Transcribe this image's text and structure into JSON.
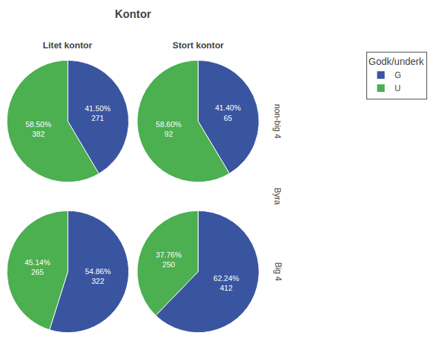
{
  "chart_data": {
    "type": "pie",
    "title": "Kontor",
    "legend_title": "Godk/underk",
    "legend": "upper right",
    "categories": [
      "G",
      "U"
    ],
    "colors": [
      "#3A55A0",
      "#4CAF50"
    ],
    "column_labels": [
      "Litet kontor",
      "Stort kontor"
    ],
    "row_labels": [
      "non-big 4",
      "Big 4"
    ],
    "mid_label": "Byra",
    "data_labels": true,
    "pies": [
      {
        "row": "non-big 4",
        "column": "Litet kontor",
        "values": [
          41.5,
          58.5
        ],
        "value_labels": [
          "41.50%\n271",
          "58.50%\n382"
        ]
      },
      {
        "row": "non-big 4",
        "column": "Stort kontor",
        "values": [
          41.4,
          58.6
        ],
        "value_labels": [
          "41.40%\n65",
          "58.60%\n92"
        ]
      },
      {
        "row": "Big 4",
        "column": "Litet kontor",
        "values": [
          54.86,
          45.14
        ],
        "value_labels": [
          "54.86%\n322",
          "45.14%\n265"
        ]
      },
      {
        "row": "Big 4",
        "column": "Stort kontor",
        "values": [
          62.24,
          37.76
        ],
        "value_labels": [
          "62.24%\n412",
          "37.76%\n250"
        ]
      }
    ]
  }
}
